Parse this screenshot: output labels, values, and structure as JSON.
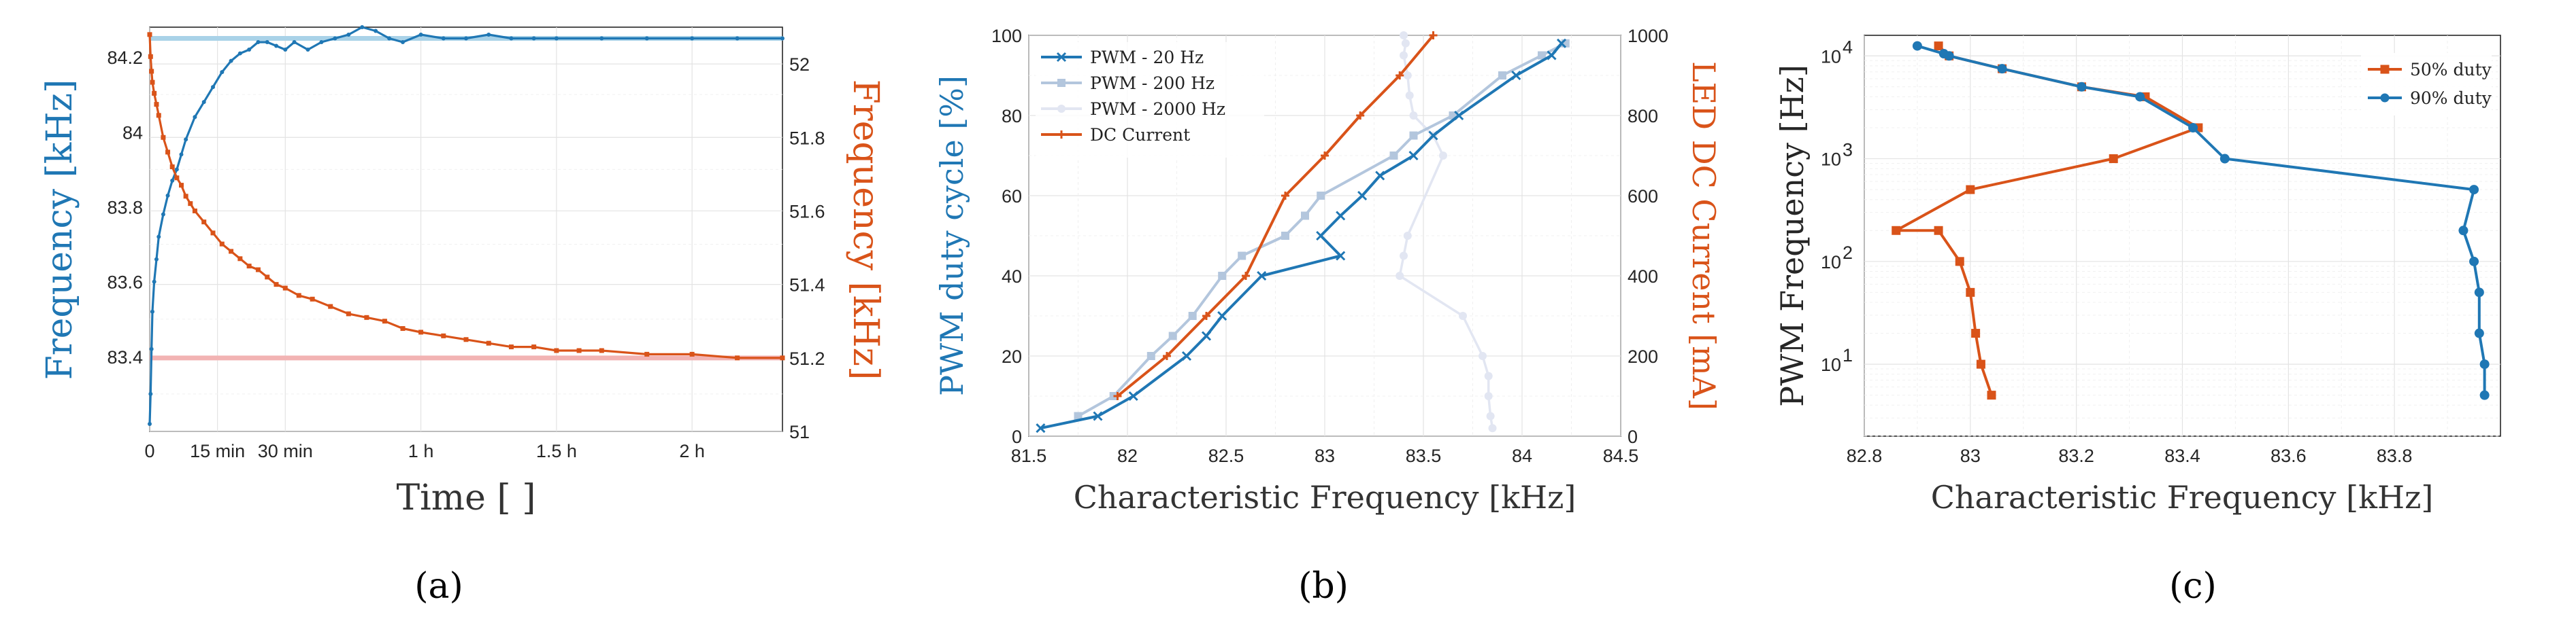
{
  "colors": {
    "blue": "#1f77b4",
    "orange": "#d95319",
    "lightblue": "#b3c6dd",
    "faintblue": "#e2e6f2",
    "darkorange": "#c44a17",
    "axis": "#262626"
  },
  "panels": [
    {
      "label": "(a)",
      "chart_data": {
        "type": "line",
        "xlabel": "Time [ ]",
        "ylabel_left": "Frequency [kHz]",
        "ylabel_right": "Frequency [kHz]",
        "xlim": [
          0,
          140
        ],
        "ylim_left": [
          83.2,
          84.28
        ],
        "ylim_right": [
          51.0,
          52.1
        ],
        "xticks": [
          {
            "v": 0,
            "label": "0"
          },
          {
            "v": 15,
            "label": "15 min"
          },
          {
            "v": 30,
            "label": "30 min"
          },
          {
            "v": 60,
            "label": "1 h"
          },
          {
            "v": 90,
            "label": "1.5 h"
          },
          {
            "v": 120,
            "label": "2 h"
          }
        ],
        "yticks_left": [
          "83.4",
          "83.6",
          "83.8",
          "84",
          "84.2"
        ],
        "yticks_left_values": [
          83.4,
          83.6,
          83.8,
          84.0,
          84.2
        ],
        "yticks_right": [
          "51",
          "51.2",
          "51.4",
          "51.6",
          "51.8",
          "52"
        ],
        "yticks_right_values": [
          51.0,
          51.2,
          51.4,
          51.6,
          51.8,
          52.0
        ],
        "reference_lines": [
          {
            "axis": "left",
            "value": 84.25,
            "color": "#a9d2e8"
          },
          {
            "axis": "right",
            "value": 51.2,
            "color": "#f2b3b3"
          }
        ],
        "series": [
          {
            "axis": "left",
            "color": "#1f77b4",
            "marker": "dot",
            "x": [
              0,
              0.2,
              0.4,
              0.6,
              1,
              1.5,
              2,
              3,
              4,
              5,
              6,
              7,
              8,
              10,
              12,
              14,
              16,
              18,
              20,
              22,
              24,
              26,
              28,
              30,
              32,
              35,
              38,
              41,
              44,
              47,
              50,
              53,
              56,
              60,
              65,
              70,
              75,
              80,
              85,
              90,
              100,
              110,
              120,
              130,
              140
            ],
            "y": [
              83.22,
              83.3,
              83.42,
              83.52,
              83.6,
              83.66,
              83.72,
              83.78,
              83.83,
              83.87,
              83.9,
              83.94,
              83.98,
              84.04,
              84.08,
              84.12,
              84.16,
              84.19,
              84.21,
              84.22,
              84.24,
              84.24,
              84.23,
              84.22,
              84.24,
              84.22,
              84.24,
              84.25,
              84.26,
              84.28,
              84.27,
              84.25,
              84.24,
              84.26,
              84.25,
              84.25,
              84.26,
              84.25,
              84.25,
              84.25,
              84.25,
              84.25,
              84.25,
              84.25,
              84.25
            ]
          },
          {
            "axis": "right",
            "color": "#d95319",
            "marker": "square",
            "x": [
              0,
              0.2,
              0.4,
              0.6,
              1,
              1.5,
              2,
              3,
              4,
              5,
              6,
              7,
              8,
              9,
              10,
              12,
              14,
              16,
              18,
              20,
              22,
              24,
              26,
              28,
              30,
              33,
              36,
              40,
              44,
              48,
              52,
              56,
              60,
              65,
              70,
              75,
              80,
              85,
              90,
              95,
              100,
              110,
              120,
              130,
              140
            ],
            "y": [
              52.08,
              52.02,
              51.98,
              51.95,
              51.92,
              51.89,
              51.86,
              51.8,
              51.76,
              51.72,
              51.69,
              51.67,
              51.64,
              51.62,
              51.6,
              51.57,
              51.54,
              51.51,
              51.49,
              51.47,
              51.45,
              51.44,
              51.42,
              51.4,
              51.39,
              51.37,
              51.36,
              51.34,
              51.32,
              51.31,
              51.3,
              51.28,
              51.27,
              51.26,
              51.25,
              51.24,
              51.23,
              51.23,
              51.22,
              51.22,
              51.22,
              51.21,
              51.21,
              51.2,
              51.2
            ]
          }
        ]
      }
    },
    {
      "label": "(b)",
      "chart_data": {
        "type": "line",
        "xlabel": "Characteristic Frequency [kHz]",
        "ylabel_left": "PWM duty cycle [%]",
        "ylabel_right": "LED DC Current [mA]",
        "xlim": [
          81.5,
          84.5
        ],
        "ylim_left": [
          0,
          100
        ],
        "ylim_right": [
          0,
          1000
        ],
        "xticks": [
          {
            "v": 81.5,
            "label": "81.5"
          },
          {
            "v": 82,
            "label": "82"
          },
          {
            "v": 82.5,
            "label": "82.5"
          },
          {
            "v": 83,
            "label": "83"
          },
          {
            "v": 83.5,
            "label": "83.5"
          },
          {
            "v": 84,
            "label": "84"
          },
          {
            "v": 84.5,
            "label": "84.5"
          }
        ],
        "yticks_left": [
          "0",
          "20",
          "40",
          "60",
          "80",
          "100"
        ],
        "yticks_left_values": [
          0,
          20,
          40,
          60,
          80,
          100
        ],
        "yticks_right": [
          "0",
          "200",
          "400",
          "600",
          "800",
          "1000"
        ],
        "yticks_right_values": [
          0,
          200,
          400,
          600,
          800,
          1000
        ],
        "legend": [
          "PWM - 20 Hz",
          "PWM - 200 Hz",
          "PWM - 2000 Hz",
          "DC Current"
        ],
        "series": [
          {
            "name": "PWM - 20 Hz",
            "axis": "left",
            "color": "#1f77b4",
            "marker": "x",
            "x": [
              81.56,
              81.85,
              82.03,
              82.3,
              82.4,
              82.48,
              82.68,
              83.08,
              82.98,
              83.08,
              83.19,
              83.28,
              83.45,
              83.55,
              83.68,
              83.97,
              84.15,
              84.2
            ],
            "y": [
              2,
              5,
              10,
              20,
              25,
              30,
              40,
              45,
              50,
              55,
              60,
              65,
              70,
              75,
              80,
              90,
              95,
              98
            ]
          },
          {
            "name": "PWM - 200 Hz",
            "axis": "left",
            "color": "#b3c6dd",
            "marker": "square",
            "x": [
              81.75,
              81.93,
              82.12,
              82.23,
              82.33,
              82.48,
              82.58,
              82.8,
              82.9,
              82.98,
              83.35,
              83.45,
              83.65,
              83.9,
              84.1,
              84.22
            ],
            "y": [
              5,
              10,
              20,
              25,
              30,
              40,
              45,
              50,
              55,
              60,
              70,
              75,
              80,
              90,
              95,
              98
            ]
          },
          {
            "name": "PWM - 2000 Hz",
            "axis": "left",
            "color": "#e2e6f2",
            "marker": "dot",
            "x": [
              83.85,
              83.84,
              83.83,
              83.83,
              83.8,
              83.7,
              83.38,
              83.4,
              83.42,
              83.6,
              83.55,
              83.45,
              83.43,
              83.42,
              83.4,
              83.41,
              83.4
            ],
            "y": [
              2,
              5,
              10,
              15,
              20,
              30,
              40,
              45,
              50,
              70,
              75,
              80,
              85,
              90,
              95,
              98,
              100
            ]
          },
          {
            "name": "DC Current",
            "axis": "right",
            "color": "#d95319",
            "marker": "plus",
            "x": [
              81.95,
              82.2,
              82.4,
              82.6,
              82.8,
              83.0,
              83.18,
              83.38,
              83.55
            ],
            "y": [
              100,
              200,
              300,
              400,
              600,
              700,
              800,
              900,
              1000
            ]
          }
        ]
      }
    },
    {
      "label": "(c)",
      "chart_data": {
        "type": "line",
        "xlabel": "Characteristic Frequency [kHz]",
        "ylabel_left": "PWM Frequency [Hz]",
        "xlim": [
          82.8,
          84.0
        ],
        "ylim_left_log10": [
          0.3,
          4.2
        ],
        "yscale": "log",
        "xticks": [
          {
            "v": 82.8,
            "label": "82.8"
          },
          {
            "v": 83.0,
            "label": "83"
          },
          {
            "v": 83.2,
            "label": "83.2"
          },
          {
            "v": 83.4,
            "label": "83.4"
          },
          {
            "v": 83.6,
            "label": "83.6"
          },
          {
            "v": 83.8,
            "label": "83.8"
          }
        ],
        "yticks_log_labels": [
          {
            "base": "10",
            "exp": "1"
          },
          {
            "base": "10",
            "exp": "2"
          },
          {
            "base": "10",
            "exp": "3"
          },
          {
            "base": "10",
            "exp": "4"
          }
        ],
        "yticks_log_values": [
          10,
          100,
          1000,
          10000
        ],
        "legend": [
          "50% duty",
          "90% duty"
        ],
        "series": [
          {
            "name": "50% duty",
            "color": "#d95319",
            "marker": "square",
            "x": [
              83.04,
              83.02,
              83.01,
              83.0,
              82.98,
              82.94,
              82.86,
              83.0,
              83.27,
              83.43,
              83.33,
              83.21,
              83.06,
              82.96,
              82.94
            ],
            "y": [
              5,
              10,
              20,
              50,
              100,
              200,
              200,
              500,
              1000,
              2000,
              4000,
              5000,
              7500,
              10000,
              12500
            ]
          },
          {
            "name": "90% duty",
            "color": "#1f77b4",
            "marker": "dot",
            "x": [
              83.97,
              83.97,
              83.96,
              83.96,
              83.95,
              83.93,
              83.95,
              83.48,
              83.42,
              83.32,
              83.21,
              83.06,
              82.96,
              82.95,
              82.9
            ],
            "y": [
              5,
              10,
              20,
              50,
              100,
              200,
              500,
              1000,
              2000,
              4000,
              5000,
              7500,
              10000,
              10500,
              12500
            ]
          }
        ]
      }
    }
  ]
}
